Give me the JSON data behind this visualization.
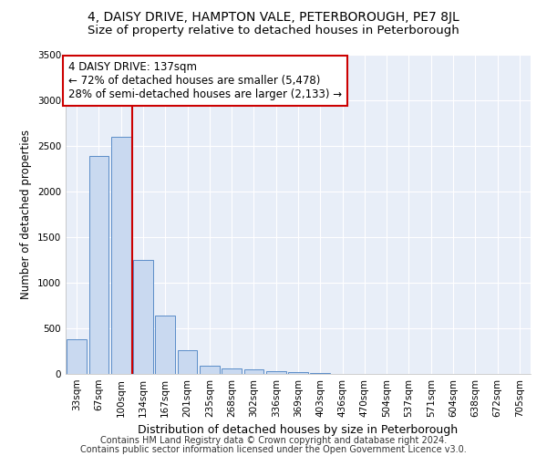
{
  "title1": "4, DAISY DRIVE, HAMPTON VALE, PETERBOROUGH, PE7 8JL",
  "title2": "Size of property relative to detached houses in Peterborough",
  "xlabel": "Distribution of detached houses by size in Peterborough",
  "ylabel": "Number of detached properties",
  "footnote1": "Contains HM Land Registry data © Crown copyright and database right 2024.",
  "footnote2": "Contains public sector information licensed under the Open Government Licence v3.0.",
  "bar_color": "#c9d9f0",
  "bar_edge_color": "#5b8dc8",
  "annotation_line_color": "#cc0000",
  "annotation_box_edge": "#cc0000",
  "background_color": "#e8eef8",
  "categories": [
    "33sqm",
    "67sqm",
    "100sqm",
    "134sqm",
    "167sqm",
    "201sqm",
    "235sqm",
    "268sqm",
    "302sqm",
    "336sqm",
    "369sqm",
    "403sqm",
    "436sqm",
    "470sqm",
    "504sqm",
    "537sqm",
    "571sqm",
    "604sqm",
    "638sqm",
    "672sqm",
    "705sqm"
  ],
  "values": [
    380,
    2390,
    2600,
    1250,
    640,
    260,
    95,
    60,
    55,
    35,
    20,
    15,
    0,
    0,
    0,
    0,
    0,
    0,
    0,
    0,
    0
  ],
  "ylim": [
    0,
    3500
  ],
  "yticks": [
    0,
    500,
    1000,
    1500,
    2000,
    2500,
    3000,
    3500
  ],
  "property_bin_index": 3,
  "annotation_text": "4 DAISY DRIVE: 137sqm\n← 72% of detached houses are smaller (5,478)\n28% of semi-detached houses are larger (2,133) →",
  "title1_fontsize": 10,
  "title2_fontsize": 9.5,
  "xlabel_fontsize": 9,
  "ylabel_fontsize": 8.5,
  "tick_fontsize": 7.5,
  "annotation_fontsize": 8.5,
  "footnote_fontsize": 7
}
